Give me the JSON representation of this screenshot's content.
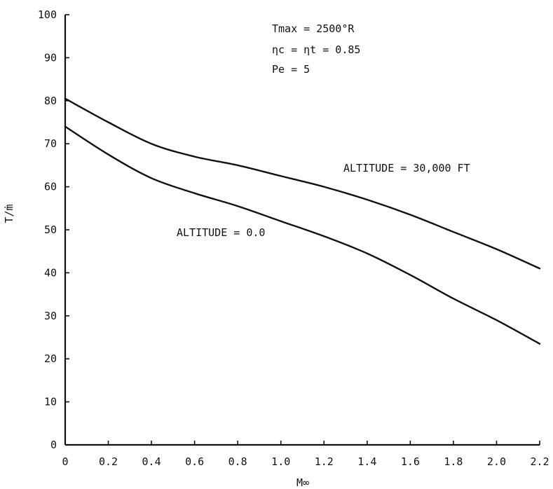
{
  "chart_data": {
    "type": "line",
    "xlabel": "M∞",
    "ylabel": "T/ṁ",
    "xlim": [
      0,
      2.2
    ],
    "ylim": [
      0,
      100
    ],
    "x_ticks": [
      0,
      0.2,
      0.4,
      0.6,
      0.8,
      1.0,
      1.2,
      1.4,
      1.6,
      1.8,
      2.0,
      2.2
    ],
    "x_tick_labels": [
      "0",
      "0.2",
      "0.4",
      "0.6",
      "0.8",
      "1.0",
      "1.2",
      "1.4",
      "1.6",
      "1.8",
      "2.0",
      "2.2"
    ],
    "y_ticks": [
      0,
      10,
      20,
      30,
      40,
      50,
      60,
      70,
      80,
      90,
      100
    ],
    "y_tick_labels": [
      "0",
      "10",
      "20",
      "30",
      "40",
      "50",
      "60",
      "70",
      "80",
      "90",
      "100"
    ],
    "grid": false,
    "annotations": [
      "Tmax = 2500°R",
      "ηc = ηt = 0.85",
      "Pe = 5"
    ],
    "series": [
      {
        "name": "ALTITUDE = 30,000 FT",
        "x": [
          0,
          0.2,
          0.4,
          0.6,
          0.8,
          1.0,
          1.2,
          1.4,
          1.6,
          1.8,
          2.0,
          2.2
        ],
        "y": [
          80.5,
          75.0,
          70.0,
          67.0,
          65.0,
          62.5,
          60.0,
          57.0,
          53.5,
          49.5,
          45.5,
          41.0
        ]
      },
      {
        "name": "ALTITUDE = 0.0",
        "x": [
          0,
          0.2,
          0.4,
          0.6,
          0.8,
          1.0,
          1.2,
          1.4,
          1.6,
          1.8,
          2.0,
          2.2
        ],
        "y": [
          74.0,
          67.5,
          62.0,
          58.5,
          55.5,
          52.0,
          48.5,
          44.5,
          39.5,
          34.0,
          29.0,
          23.5
        ]
      }
    ]
  }
}
